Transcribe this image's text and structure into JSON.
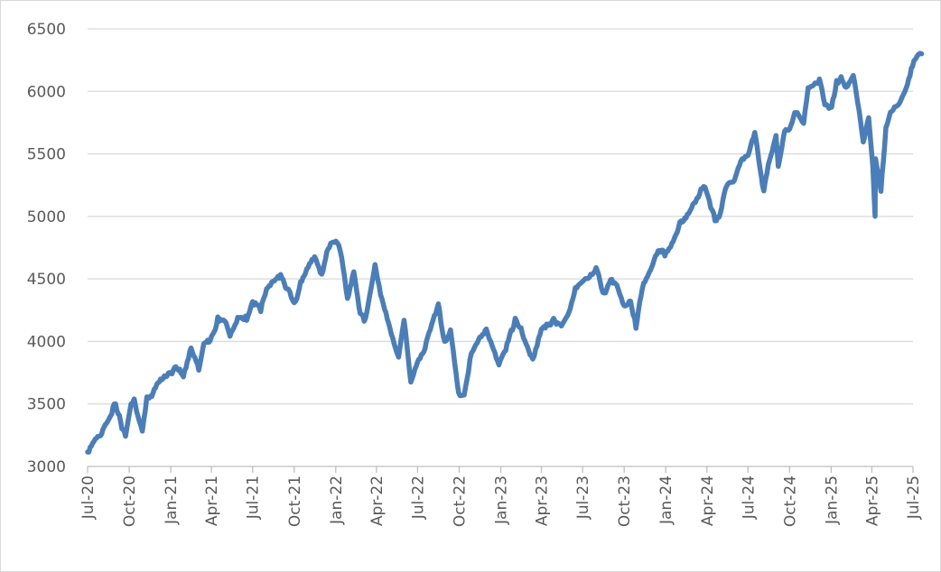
{
  "chart_data": {
    "type": "line",
    "title": "",
    "xlabel": "",
    "ylabel": "",
    "ylim": [
      3000,
      6500
    ],
    "yticks": [
      3000,
      3500,
      4000,
      4500,
      5000,
      5500,
      6000,
      6500
    ],
    "xticks": [
      "Jul-20",
      "Oct-20",
      "Jan-21",
      "Apr-21",
      "Jul-21",
      "Oct-21",
      "Jan-22",
      "Apr-22",
      "Jul-22",
      "Oct-22",
      "Jan-23",
      "Apr-23",
      "Jul-23",
      "Oct-23",
      "Jan-24",
      "Apr-24",
      "Jul-24",
      "Oct-24",
      "Jan-25",
      "Apr-25",
      "Jul-25"
    ],
    "grid": true,
    "legend": "none",
    "line_color": "#4a7ebb",
    "series": [
      {
        "x": [
          "2020-07-01",
          "2020-07-15",
          "2020-08-01",
          "2020-08-15",
          "2020-09-01",
          "2020-09-15",
          "2020-09-23",
          "2020-10-05",
          "2020-10-12",
          "2020-10-20",
          "2020-10-30",
          "2020-11-09",
          "2020-11-20",
          "2020-12-01",
          "2020-12-15",
          "2021-01-01",
          "2021-01-15",
          "2021-01-29",
          "2021-02-15",
          "2021-03-04",
          "2021-03-15",
          "2021-04-01",
          "2021-04-15",
          "2021-05-01",
          "2021-05-12",
          "2021-06-01",
          "2021-06-18",
          "2021-07-01",
          "2021-07-19",
          "2021-08-01",
          "2021-08-15",
          "2021-09-01",
          "2021-09-15",
          "2021-10-04",
          "2021-10-15",
          "2021-11-01",
          "2021-11-15",
          "2021-12-01",
          "2021-12-15",
          "2022-01-04",
          "2022-01-14",
          "2022-01-27",
          "2022-02-10",
          "2022-02-24",
          "2022-03-08",
          "2022-03-29",
          "2022-04-10",
          "2022-04-28",
          "2022-05-10",
          "2022-05-20",
          "2022-06-01",
          "2022-06-16",
          "2022-07-01",
          "2022-07-15",
          "2022-08-01",
          "2022-08-16",
          "2022-08-30",
          "2022-09-12",
          "2022-09-30",
          "2022-10-12",
          "2022-10-28",
          "2022-11-10",
          "2022-11-30",
          "2022-12-13",
          "2022-12-28",
          "2023-01-15",
          "2023-02-02",
          "2023-02-15",
          "2023-03-01",
          "2023-03-13",
          "2023-04-01",
          "2023-04-15",
          "2023-05-01",
          "2023-05-15",
          "2023-06-01",
          "2023-06-15",
          "2023-07-01",
          "2023-07-31",
          "2023-08-18",
          "2023-09-01",
          "2023-09-15",
          "2023-10-01",
          "2023-10-15",
          "2023-10-27",
          "2023-11-10",
          "2023-12-01",
          "2023-12-15",
          "2024-01-02",
          "2024-01-15",
          "2024-02-01",
          "2024-02-15",
          "2024-03-01",
          "2024-03-28",
          "2024-04-19",
          "2024-05-01",
          "2024-05-15",
          "2024-06-01",
          "2024-06-15",
          "2024-07-01",
          "2024-07-16",
          "2024-08-05",
          "2024-08-15",
          "2024-09-01",
          "2024-09-06",
          "2024-09-20",
          "2024-10-01",
          "2024-10-15",
          "2024-11-01",
          "2024-11-11",
          "2024-12-06",
          "2024-12-18",
          "2025-01-02",
          "2025-01-13",
          "2025-01-23",
          "2025-02-03",
          "2025-02-19",
          "2025-03-04",
          "2025-03-13",
          "2025-03-25",
          "2025-04-03",
          "2025-04-08",
          "2025-04-09",
          "2025-04-21",
          "2025-05-02",
          "2025-05-12",
          "2025-05-30",
          "2025-06-13",
          "2025-06-30",
          "2025-07-03",
          "2025-07-10",
          "2025-07-20"
        ],
        "values": [
          3115,
          3215,
          3275,
          3380,
          3500,
          3320,
          3240,
          3480,
          3530,
          3390,
          3270,
          3550,
          3580,
          3670,
          3720,
          3750,
          3800,
          3710,
          3940,
          3770,
          3960,
          4020,
          4180,
          4180,
          4060,
          4200,
          4180,
          4320,
          4250,
          4400,
          4470,
          4520,
          4420,
          4300,
          4480,
          4610,
          4690,
          4540,
          4750,
          4800,
          4660,
          4330,
          4550,
          4220,
          4170,
          4630,
          4390,
          4150,
          4000,
          3880,
          4170,
          3670,
          3830,
          3910,
          4130,
          4300,
          3980,
          4110,
          3590,
          3580,
          3910,
          3990,
          4080,
          3950,
          3800,
          3970,
          4180,
          4090,
          3960,
          3860,
          4110,
          4140,
          4170,
          4110,
          4220,
          4410,
          4460,
          4590,
          4370,
          4510,
          4450,
          4290,
          4330,
          4120,
          4420,
          4590,
          4720,
          4700,
          4770,
          4950,
          5000,
          5100,
          5250,
          4970,
          5030,
          5250,
          5280,
          5430,
          5480,
          5670,
          5190,
          5420,
          5650,
          5410,
          5700,
          5710,
          5840,
          5730,
          6010,
          6090,
          5880,
          5870,
          6070,
          6120,
          6040,
          6140,
          5850,
          5600,
          5780,
          5400,
          4990,
          5450,
          5200,
          5700,
          5850,
          5910,
          6000,
          6200,
          6260,
          6290,
          6300
        ]
      }
    ]
  }
}
